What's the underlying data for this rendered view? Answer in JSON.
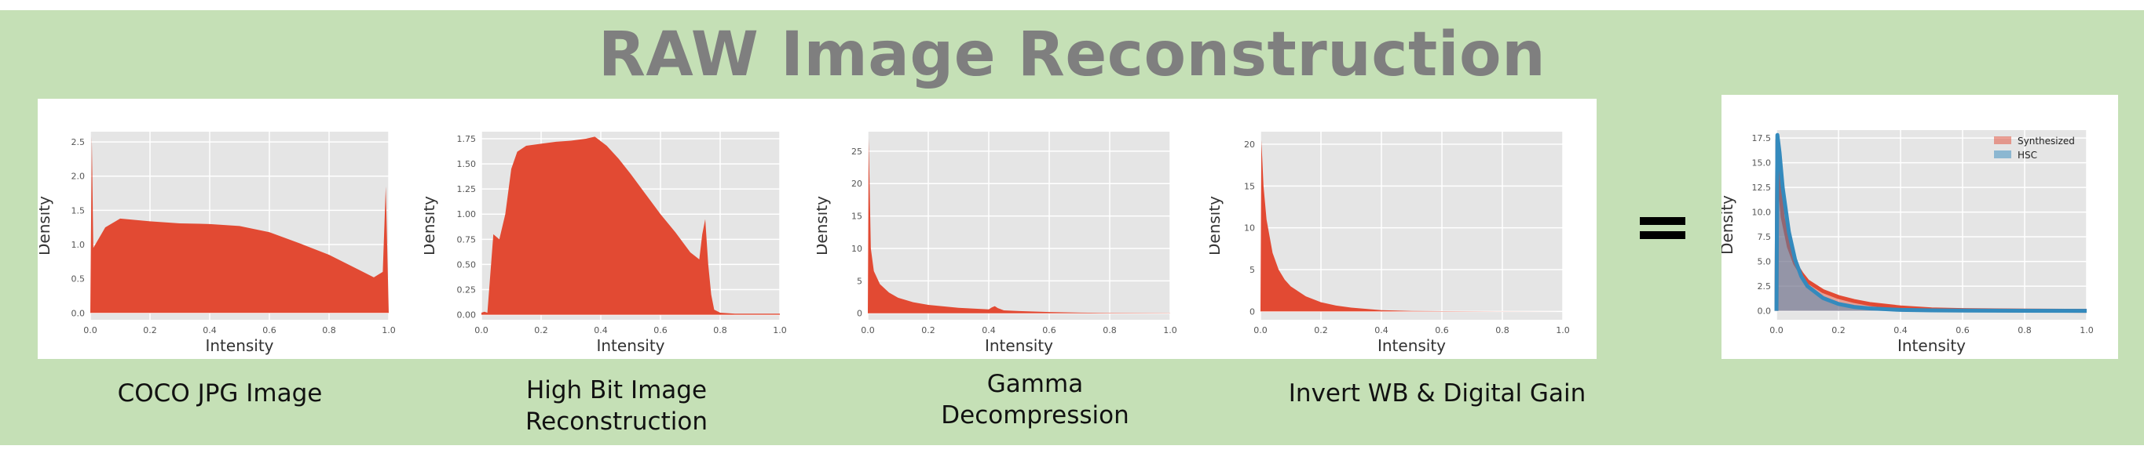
{
  "title": "RAW Image Reconstruction",
  "captions": [
    "COCO JPG Image",
    "High Bit Image\nReconstruction",
    "Gamma\nDecompression",
    "Invert WB & Digital Gain"
  ],
  "equals_symbol": "=",
  "colors": {
    "background": "#c5e0b6",
    "title": "#7f7f7f",
    "plot_bg": "#e5e5e5",
    "fill": "#e24a33",
    "synthesized": "#e24a33",
    "hsc": "#348abd"
  },
  "chart_data": [
    {
      "type": "area",
      "xlabel": "Intensity",
      "ylabel": "Density",
      "xlim": [
        0,
        1
      ],
      "ylim": [
        -0.1,
        2.65
      ],
      "xticks": [
        "0.0",
        "0.2",
        "0.4",
        "0.6",
        "0.8",
        "1.0"
      ],
      "yticks": [
        "0.0",
        "0.5",
        "1.0",
        "1.5",
        "2.0",
        "2.5"
      ],
      "grid": true,
      "series": [
        {
          "x": [
            0.0,
            0.005,
            0.01,
            0.05,
            0.1,
            0.2,
            0.3,
            0.4,
            0.5,
            0.6,
            0.7,
            0.8,
            0.9,
            0.95,
            0.98,
            0.99,
            1.0
          ],
          "y": [
            0.0,
            2.58,
            0.95,
            1.25,
            1.38,
            1.34,
            1.31,
            1.3,
            1.27,
            1.18,
            1.02,
            0.85,
            0.63,
            0.52,
            0.6,
            1.85,
            0.0
          ]
        }
      ]
    },
    {
      "type": "area",
      "xlabel": "Intensity",
      "ylabel": "Density",
      "xlim": [
        0,
        1
      ],
      "ylim": [
        -0.05,
        1.82
      ],
      "xticks": [
        "0.0",
        "0.2",
        "0.4",
        "0.6",
        "0.8",
        "1.0"
      ],
      "yticks": [
        "0.00",
        "0.25",
        "0.50",
        "0.75",
        "1.00",
        "1.25",
        "1.50",
        "1.75"
      ],
      "grid": true,
      "series": [
        {
          "x": [
            0.0,
            0.01,
            0.02,
            0.04,
            0.06,
            0.08,
            0.1,
            0.12,
            0.15,
            0.2,
            0.25,
            0.3,
            0.35,
            0.38,
            0.42,
            0.46,
            0.5,
            0.55,
            0.6,
            0.65,
            0.7,
            0.73,
            0.74,
            0.75,
            0.76,
            0.77,
            0.78,
            0.8,
            0.85,
            0.9,
            1.0
          ],
          "y": [
            0.02,
            0.03,
            0.02,
            0.8,
            0.75,
            1.0,
            1.45,
            1.62,
            1.68,
            1.7,
            1.72,
            1.73,
            1.75,
            1.77,
            1.68,
            1.55,
            1.4,
            1.2,
            1.0,
            0.82,
            0.62,
            0.55,
            0.8,
            0.95,
            0.5,
            0.2,
            0.05,
            0.02,
            0.01,
            0.01,
            0.01
          ]
        }
      ]
    },
    {
      "type": "area",
      "xlabel": "Intensity",
      "ylabel": "Density",
      "xlim": [
        0,
        1
      ],
      "ylim": [
        -1,
        28
      ],
      "xticks": [
        "0.0",
        "0.2",
        "0.4",
        "0.6",
        "0.8",
        "1.0"
      ],
      "yticks": [
        "0",
        "5",
        "10",
        "15",
        "20",
        "25"
      ],
      "grid": true,
      "series": [
        {
          "x": [
            0.0,
            0.003,
            0.01,
            0.02,
            0.04,
            0.07,
            0.1,
            0.15,
            0.2,
            0.3,
            0.4,
            0.41,
            0.42,
            0.43,
            0.45,
            0.5,
            0.6,
            0.7,
            0.8,
            1.0
          ],
          "y": [
            0.0,
            27.0,
            10.0,
            6.5,
            4.5,
            3.2,
            2.4,
            1.7,
            1.3,
            0.85,
            0.6,
            0.9,
            1.1,
            0.8,
            0.45,
            0.35,
            0.2,
            0.1,
            0.05,
            0.02
          ]
        }
      ]
    },
    {
      "type": "area",
      "xlabel": "Intensity",
      "ylabel": "Density",
      "xlim": [
        0,
        1
      ],
      "ylim": [
        -1,
        21.5
      ],
      "xticks": [
        "0.0",
        "0.2",
        "0.4",
        "0.6",
        "0.8",
        "1.0"
      ],
      "yticks": [
        "0",
        "5",
        "10",
        "15",
        "20"
      ],
      "grid": true,
      "series": [
        {
          "x": [
            0.0,
            0.003,
            0.01,
            0.02,
            0.04,
            0.06,
            0.08,
            0.1,
            0.15,
            0.2,
            0.25,
            0.3,
            0.35,
            0.4,
            0.5,
            0.6,
            0.8,
            1.0
          ],
          "y": [
            0.0,
            20.5,
            15.0,
            11.0,
            7.0,
            5.0,
            3.8,
            3.0,
            1.8,
            1.1,
            0.7,
            0.45,
            0.3,
            0.15,
            0.06,
            0.03,
            0.01,
            0.0
          ]
        }
      ]
    },
    {
      "type": "area",
      "xlabel": "Intensity",
      "ylabel": "Density",
      "xlim": [
        0,
        1
      ],
      "ylim": [
        -0.9,
        18.3
      ],
      "xticks": [
        "0.0",
        "0.2",
        "0.4",
        "0.6",
        "0.8",
        "1.0"
      ],
      "yticks": [
        "0.0",
        "2.5",
        "5.0",
        "7.5",
        "10.0",
        "12.5",
        "15.0",
        "17.5"
      ],
      "grid": true,
      "legend": "top-right",
      "series": [
        {
          "name": "Synthesized",
          "x": [
            0.0,
            0.003,
            0.01,
            0.02,
            0.04,
            0.06,
            0.08,
            0.1,
            0.15,
            0.2,
            0.25,
            0.3,
            0.4,
            0.5,
            0.6,
            0.8,
            1.0
          ],
          "y": [
            0.0,
            17.3,
            13.0,
            9.5,
            6.5,
            4.8,
            3.8,
            3.0,
            2.0,
            1.4,
            1.0,
            0.7,
            0.35,
            0.15,
            0.08,
            0.03,
            0.0
          ]
        },
        {
          "name": "HSC",
          "x": [
            0.0,
            0.003,
            0.01,
            0.02,
            0.04,
            0.06,
            0.08,
            0.1,
            0.15,
            0.2,
            0.25,
            0.3,
            0.4,
            0.5,
            0.6,
            0.8,
            1.0
          ],
          "y": [
            0.0,
            17.8,
            16.0,
            12.5,
            8.0,
            5.2,
            3.5,
            2.5,
            1.3,
            0.7,
            0.4,
            0.25,
            0.1,
            0.05,
            0.03,
            0.01,
            0.0
          ]
        }
      ]
    }
  ]
}
